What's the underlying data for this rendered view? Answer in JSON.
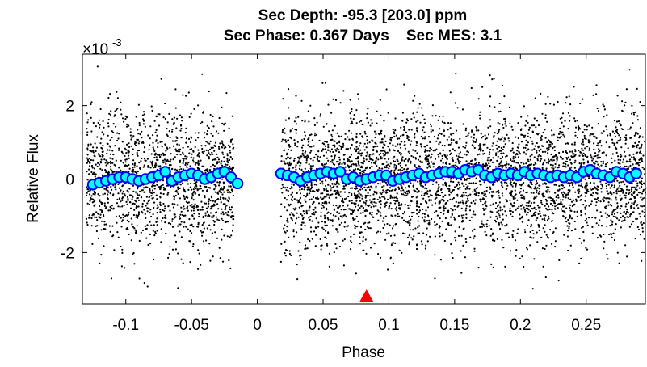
{
  "chart_data": {
    "type": "scatter",
    "title_line1": "Sec Depth: -95.3 [203.0] ppm",
    "title_line2": "Sec Phase: 0.367 Days    Sec MES: 3.1",
    "xlabel": "Phase",
    "ylabel": "Relative Flux",
    "y_multiplier": "×10",
    "y_exponent": "-3",
    "xlim": [
      -0.133,
      0.295
    ],
    "ylim": [
      -3.4,
      3.4
    ],
    "x_ticks": [
      -0.1,
      -0.05,
      0,
      0.05,
      0.1,
      0.15,
      0.2,
      0.25
    ],
    "x_tick_labels": [
      "-0.1",
      "-0.05",
      "0",
      "0.05",
      "0.1",
      "0.15",
      "0.2",
      "0.25"
    ],
    "y_ticks": [
      -2,
      0,
      2
    ],
    "y_tick_labels": [
      "-2",
      "0",
      "2"
    ],
    "grid": false,
    "raw_points": {
      "color": "#000000",
      "segments": [
        [
          -0.13,
          -0.018
        ],
        [
          0.018,
          0.295
        ]
      ],
      "sigma": 0.9,
      "clip": 3.4
    },
    "binned_series": {
      "marker_fill": "#00ffff",
      "marker_edge": "#0000ff",
      "x": [
        -0.125,
        -0.12,
        -0.115,
        -0.11,
        -0.105,
        -0.1,
        -0.095,
        -0.09,
        -0.085,
        -0.08,
        -0.075,
        -0.07,
        -0.065,
        -0.06,
        -0.055,
        -0.05,
        -0.045,
        -0.04,
        -0.035,
        -0.03,
        -0.025,
        -0.02,
        -0.015,
        0.018,
        0.023,
        0.028,
        0.033,
        0.038,
        0.043,
        0.048,
        0.053,
        0.058,
        0.063,
        0.068,
        0.073,
        0.078,
        0.083,
        0.088,
        0.093,
        0.098,
        0.103,
        0.108,
        0.113,
        0.118,
        0.123,
        0.128,
        0.133,
        0.138,
        0.143,
        0.148,
        0.153,
        0.158,
        0.163,
        0.168,
        0.173,
        0.178,
        0.183,
        0.188,
        0.193,
        0.198,
        0.203,
        0.208,
        0.213,
        0.218,
        0.223,
        0.228,
        0.233,
        0.238,
        0.243,
        0.248,
        0.253,
        0.258,
        0.263,
        0.268,
        0.273,
        0.278,
        0.283,
        0.288
      ],
      "y": [
        -0.15,
        -0.1,
        -0.05,
        0.0,
        0.05,
        0.05,
        0.0,
        -0.05,
        0.0,
        0.05,
        0.1,
        0.2,
        -0.05,
        0.05,
        0.1,
        0.15,
        0.1,
        0.0,
        0.05,
        0.15,
        0.2,
        0.05,
        -0.12,
        0.15,
        0.1,
        0.05,
        -0.05,
        0.05,
        0.1,
        0.15,
        0.2,
        0.15,
        0.2,
        0.0,
        0.05,
        -0.05,
        0.0,
        0.05,
        0.1,
        0.1,
        -0.05,
        0.0,
        0.05,
        0.1,
        0.15,
        0.05,
        0.1,
        0.15,
        0.2,
        0.2,
        0.15,
        0.25,
        0.2,
        0.25,
        0.1,
        0.05,
        0.15,
        0.1,
        0.15,
        0.1,
        0.2,
        0.1,
        0.15,
        0.1,
        0.05,
        0.1,
        0.05,
        0.1,
        0.05,
        0.2,
        0.25,
        0.15,
        0.1,
        0.05,
        0.2,
        0.15,
        0.05,
        0.15
      ]
    },
    "marker": {
      "type": "triangle",
      "x": 0.083,
      "color": "#ff0000"
    }
  }
}
